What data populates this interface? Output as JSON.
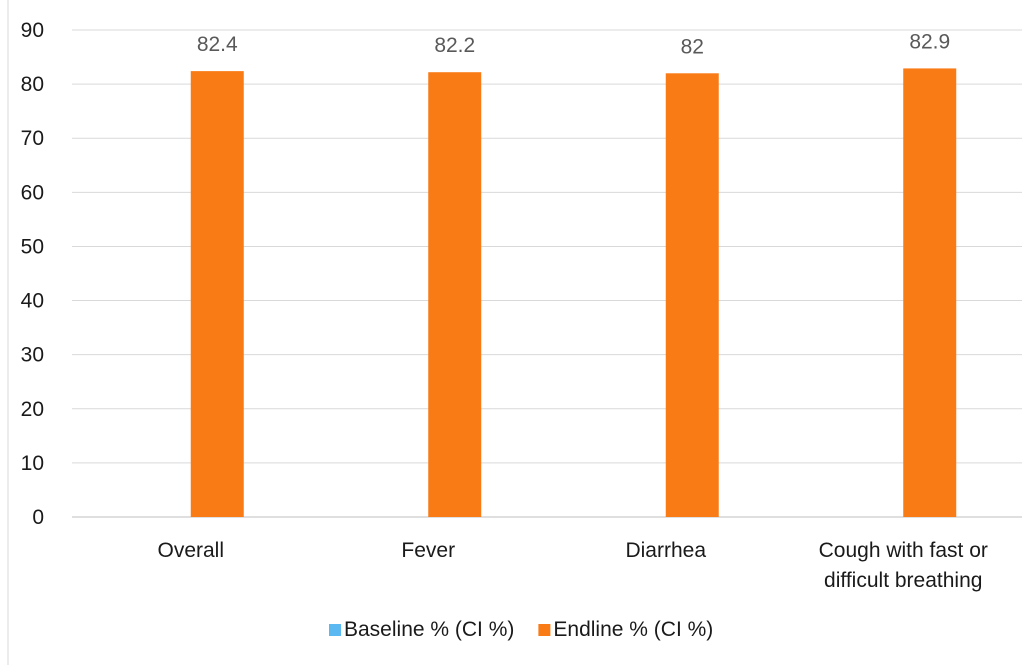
{
  "chart_data": {
    "type": "bar",
    "categories": [
      [
        "Overall"
      ],
      [
        "Fever"
      ],
      [
        "Diarrhea"
      ],
      [
        "Cough with fast or",
        "difficult breathing"
      ]
    ],
    "series": [
      {
        "name": "Baseline % (CI %)",
        "color": "#5bb8f0",
        "values": [
          null,
          null,
          null,
          null
        ]
      },
      {
        "name": "Endline % (CI %)",
        "color": "#f97b16",
        "values": [
          82.4,
          82.2,
          82,
          82.9
        ]
      }
    ],
    "data_labels": [
      "82.4",
      "82.2",
      "82",
      "82.9"
    ],
    "ylim": [
      0,
      90
    ],
    "yticks": [
      0,
      10,
      20,
      30,
      40,
      50,
      60,
      70,
      80,
      90
    ],
    "grid": true,
    "legend_position": "bottom"
  }
}
